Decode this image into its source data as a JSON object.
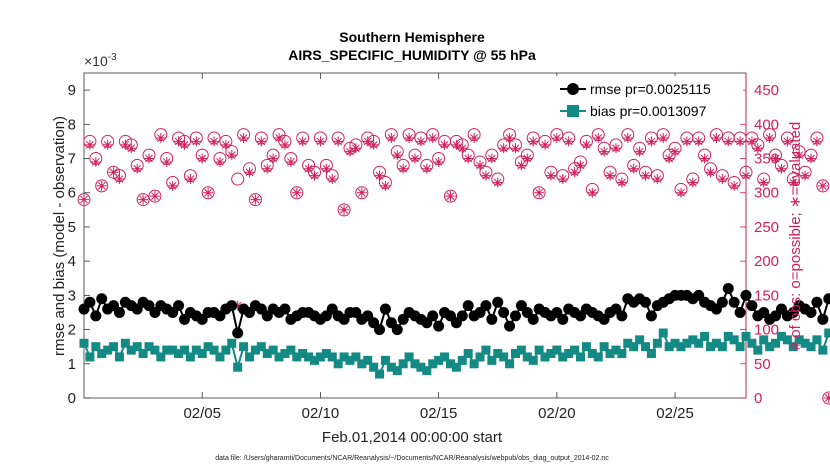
{
  "figure": {
    "title_line1": "Southern Hemisphere",
    "title_line2": "AIRS_SPECIFIC_HUMIDITY @ 55 hPa",
    "exponent_base": "×10",
    "exponent_power": "-3",
    "footer": "data file: /Users/gharamti/Documents/NCAR/Reanalysis/~/Documents/NCAR/Reanalysis/webpub/obs_diag_output_2014-02.nc"
  },
  "colors": {
    "rmse": "#000000",
    "bias": "#138a84",
    "obs": "#d21f5e",
    "axis": "#333333",
    "right_axis": "#d21f5e"
  },
  "chart_data": {
    "type": "line",
    "title": "Southern Hemisphere AIRS_SPECIFIC_HUMIDITY @ 55 hPa",
    "xlabel": "Feb.01,2014 00:00:00 start",
    "ylabel": "rmse and bias (model - observation)",
    "y2label": "# of obs: o=possible; ∗=evaluated",
    "xlim": [
      1,
      29
    ],
    "ylim": [
      0,
      9.5
    ],
    "y2lim": [
      0,
      475
    ],
    "y_scale_note": "×10^-3",
    "x_ticks": [
      6,
      11,
      16,
      21,
      26
    ],
    "x_tick_labels": [
      "02/05",
      "02/10",
      "02/15",
      "02/20",
      "02/25"
    ],
    "y_ticks": [
      0,
      1,
      2,
      3,
      4,
      5,
      6,
      7,
      8,
      9
    ],
    "y_tick_labels": [
      "0",
      "1",
      "2",
      "3",
      "4",
      "5",
      "6",
      "7",
      "8",
      "9"
    ],
    "y2_ticks": [
      0,
      50,
      100,
      150,
      200,
      250,
      300,
      350,
      400,
      450
    ],
    "y2_tick_labels": [
      "0",
      "50",
      "100",
      "150",
      "200",
      "250",
      "300",
      "350",
      "400",
      "450"
    ],
    "grid": false,
    "legend_position": "top-right",
    "legend": [
      "rmse pr=0.0025115",
      "bias pr=0.0013097"
    ],
    "x_start": 1,
    "x_step": 0.25,
    "series": [
      {
        "name": "rmse pr=0.0025115",
        "axis": "left",
        "marker": "circle",
        "values": [
          2.6,
          2.8,
          2.4,
          2.9,
          2.6,
          2.7,
          2.5,
          2.8,
          2.7,
          2.6,
          2.8,
          2.7,
          2.5,
          2.7,
          2.6,
          2.5,
          2.7,
          2.3,
          2.5,
          2.4,
          2.3,
          2.5,
          2.5,
          2.4,
          2.6,
          2.7,
          1.9,
          2.6,
          2.5,
          2.7,
          2.6,
          2.4,
          2.6,
          2.5,
          2.6,
          2.3,
          2.4,
          2.5,
          2.5,
          2.4,
          2.3,
          2.4,
          2.6,
          2.4,
          2.3,
          2.5,
          2.5,
          2.3,
          2.4,
          2.2,
          2.0,
          2.6,
          2.2,
          2.0,
          2.3,
          2.5,
          2.4,
          2.3,
          2.2,
          2.4,
          2.1,
          2.5,
          2.4,
          2.2,
          2.4,
          2.7,
          2.4,
          2.5,
          2.7,
          2.3,
          2.8,
          2.5,
          2.1,
          2.4,
          2.7,
          2.5,
          2.3,
          2.6,
          2.5,
          2.4,
          2.5,
          2.3,
          2.6,
          2.5,
          2.4,
          2.6,
          2.5,
          2.4,
          2.3,
          2.5,
          2.6,
          2.4,
          2.9,
          2.8,
          2.9,
          2.8,
          2.4,
          2.7,
          2.8,
          2.9,
          3.0,
          3.0,
          3.0,
          2.9,
          3.0,
          2.8,
          2.7,
          2.6,
          2.8,
          3.2,
          2.8,
          2.5,
          3.0,
          2.7,
          2.4,
          2.5,
          2.3,
          2.4,
          2.6,
          2.4,
          2.5,
          2.7,
          2.6,
          2.5,
          2.8,
          2.3,
          2.9
        ]
      },
      {
        "name": "bias pr=0.0013097",
        "axis": "left",
        "marker": "square",
        "values": [
          1.6,
          1.2,
          1.5,
          1.3,
          1.4,
          1.5,
          1.2,
          1.6,
          1.4,
          1.5,
          1.3,
          1.5,
          1.4,
          1.2,
          1.4,
          1.4,
          1.3,
          1.4,
          1.2,
          1.4,
          1.3,
          1.5,
          1.4,
          1.2,
          1.4,
          1.6,
          0.9,
          1.5,
          1.2,
          1.4,
          1.5,
          1.3,
          1.4,
          1.2,
          1.3,
          1.4,
          1.2,
          1.3,
          1.2,
          1.1,
          1.2,
          1.3,
          1.2,
          1.0,
          1.2,
          1.1,
          1.2,
          1.0,
          1.1,
          0.9,
          0.7,
          1.1,
          0.9,
          0.8,
          1.0,
          1.2,
          1.0,
          0.9,
          0.8,
          1.0,
          1.1,
          1.2,
          1.0,
          0.9,
          1.1,
          1.3,
          1.0,
          1.2,
          1.4,
          1.1,
          1.3,
          1.2,
          1.0,
          1.3,
          1.4,
          1.2,
          1.1,
          1.4,
          1.2,
          1.3,
          1.4,
          1.2,
          1.3,
          1.4,
          1.2,
          1.5,
          1.3,
          1.2,
          1.5,
          1.3,
          1.4,
          1.3,
          1.6,
          1.5,
          1.7,
          1.5,
          1.3,
          1.6,
          1.9,
          1.5,
          1.6,
          1.5,
          1.6,
          1.7,
          1.6,
          1.8,
          1.5,
          1.6,
          1.5,
          1.8,
          1.7,
          1.5,
          1.8,
          1.6,
          1.4,
          1.7,
          1.5,
          1.6,
          1.8,
          1.7,
          1.5,
          1.7,
          1.6,
          1.5,
          1.7,
          1.4,
          1.9
        ]
      },
      {
        "name": "possible obs",
        "axis": "right",
        "marker": "open-circle",
        "values": [
          290,
          375,
          350,
          310,
          375,
          330,
          325,
          375,
          370,
          340,
          290,
          355,
          295,
          385,
          350,
          315,
          380,
          375,
          325,
          380,
          355,
          300,
          380,
          350,
          375,
          360,
          320,
          385,
          335,
          290,
          380,
          340,
          355,
          385,
          375,
          350,
          300,
          380,
          340,
          330,
          380,
          340,
          325,
          380,
          275,
          365,
          370,
          300,
          380,
          375,
          330,
          315,
          385,
          360,
          340,
          385,
          355,
          380,
          340,
          385,
          350,
          375,
          295,
          375,
          370,
          355,
          385,
          345,
          330,
          355,
          320,
          370,
          385,
          370,
          345,
          355,
          380,
          300,
          375,
          330,
          385,
          325,
          380,
          335,
          345,
          375,
          305,
          385,
          365,
          330,
          370,
          320,
          385,
          340,
          365,
          330,
          380,
          325,
          385,
          355,
          365,
          305,
          380,
          320,
          380,
          355,
          335,
          385,
          325,
          380,
          315,
          380,
          330,
          380,
          370,
          320,
          385,
          355,
          340,
          380,
          320,
          360,
          330,
          355,
          380,
          310,
          0
        ]
      },
      {
        "name": "evaluated obs",
        "axis": "right",
        "marker": "asterisk",
        "values": [
          290,
          370,
          345,
          310,
          370,
          330,
          320,
          370,
          365,
          335,
          290,
          350,
          295,
          380,
          345,
          310,
          375,
          370,
          320,
          375,
          350,
          300,
          375,
          345,
          370,
          355,
          135,
          380,
          330,
          290,
          375,
          335,
          350,
          380,
          370,
          345,
          300,
          375,
          335,
          325,
          375,
          335,
          320,
          375,
          275,
          360,
          365,
          300,
          375,
          370,
          325,
          310,
          380,
          355,
          335,
          380,
          350,
          375,
          335,
          380,
          345,
          370,
          295,
          370,
          365,
          350,
          380,
          340,
          325,
          350,
          315,
          365,
          380,
          365,
          340,
          350,
          375,
          300,
          370,
          325,
          380,
          320,
          375,
          330,
          340,
          370,
          300,
          380,
          360,
          325,
          365,
          315,
          380,
          335,
          360,
          325,
          375,
          320,
          380,
          350,
          360,
          300,
          375,
          315,
          375,
          350,
          330,
          380,
          320,
          375,
          310,
          375,
          325,
          375,
          365,
          315,
          380,
          350,
          335,
          375,
          315,
          355,
          325,
          350,
          375,
          310,
          0
        ]
      }
    ]
  }
}
